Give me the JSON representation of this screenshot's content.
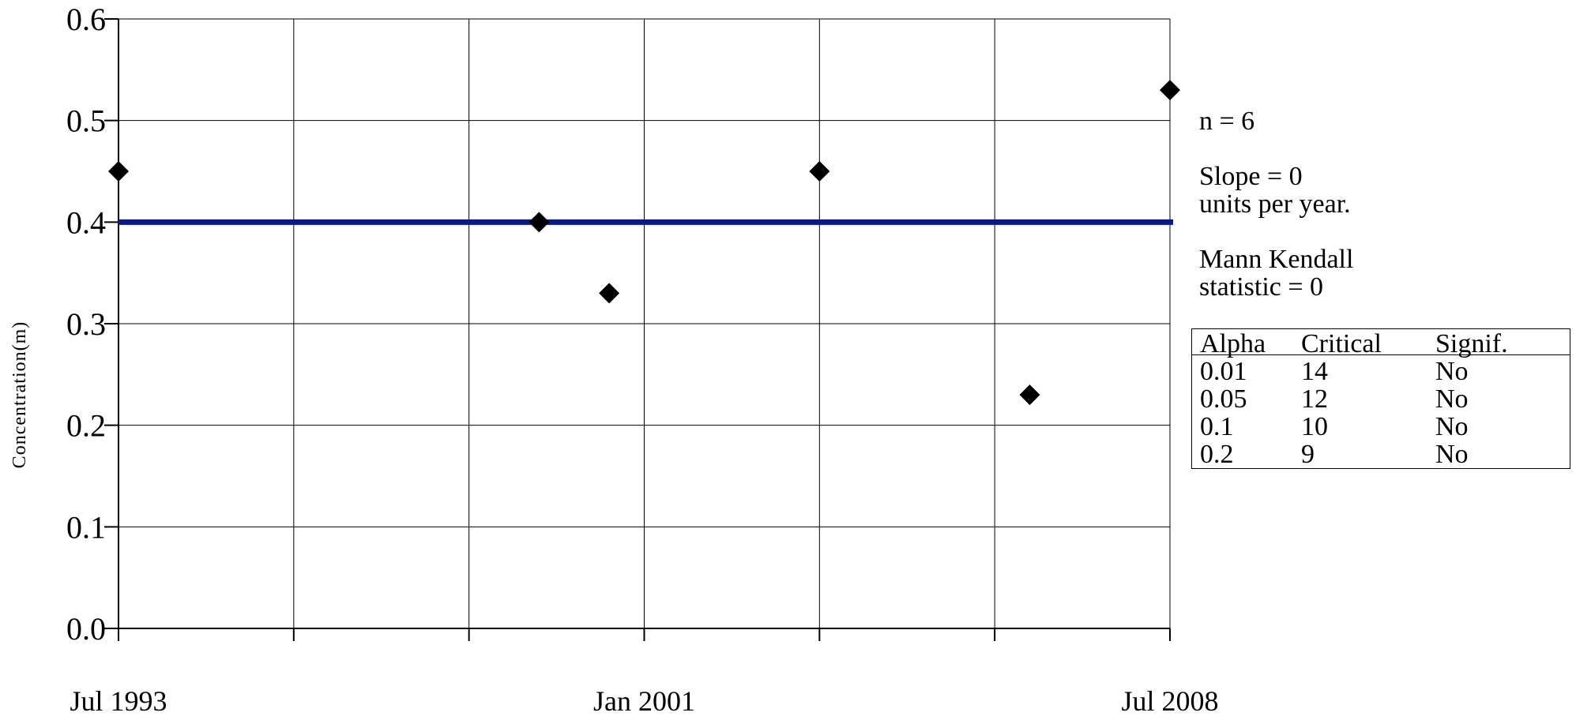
{
  "chart_data": {
    "type": "scatter",
    "ylabel": "Concentration(m)",
    "ylim": [
      0.0,
      0.6
    ],
    "y_ticks": [
      "0.0",
      "0.1",
      "0.2",
      "0.3",
      "0.4",
      "0.5",
      "0.6"
    ],
    "xlim": [
      "1993-07",
      "2008-07"
    ],
    "x_tick_labels": [
      {
        "date": "1993-07",
        "label": "Jul 1993"
      },
      {
        "date": "2001-01",
        "label": "Jan 2001"
      },
      {
        "date": "2008-07",
        "label": "Jul 2008"
      }
    ],
    "x_major_ticks": [
      "1993-07",
      "1996-01",
      "1998-07",
      "2001-01",
      "2003-07",
      "2006-01",
      "2008-07"
    ],
    "grid": true,
    "points": [
      {
        "date": "1993-07",
        "y": 0.45
      },
      {
        "date": "1999-07",
        "y": 0.4
      },
      {
        "date": "2000-07",
        "y": 0.33
      },
      {
        "date": "2003-07",
        "y": 0.45
      },
      {
        "date": "2006-07",
        "y": 0.23
      },
      {
        "date": "2008-07",
        "y": 0.53
      }
    ],
    "trend_line": {
      "y": 0.4,
      "color": "#0b1a80"
    },
    "marker_color": "#000000"
  },
  "stats": {
    "n": "n = 6",
    "slope_line1": "Slope = 0",
    "slope_line2": "units per year.",
    "mk_line1": "Mann Kendall",
    "mk_line2": "statistic = 0"
  },
  "significance_table": {
    "headers": [
      "Alpha",
      "Critical",
      "Signif."
    ],
    "rows": [
      [
        "0.01",
        "14",
        "No"
      ],
      [
        "0.05",
        "12",
        "No"
      ],
      [
        "0.1",
        "10",
        "No"
      ],
      [
        "0.2",
        "9",
        "No"
      ]
    ]
  }
}
